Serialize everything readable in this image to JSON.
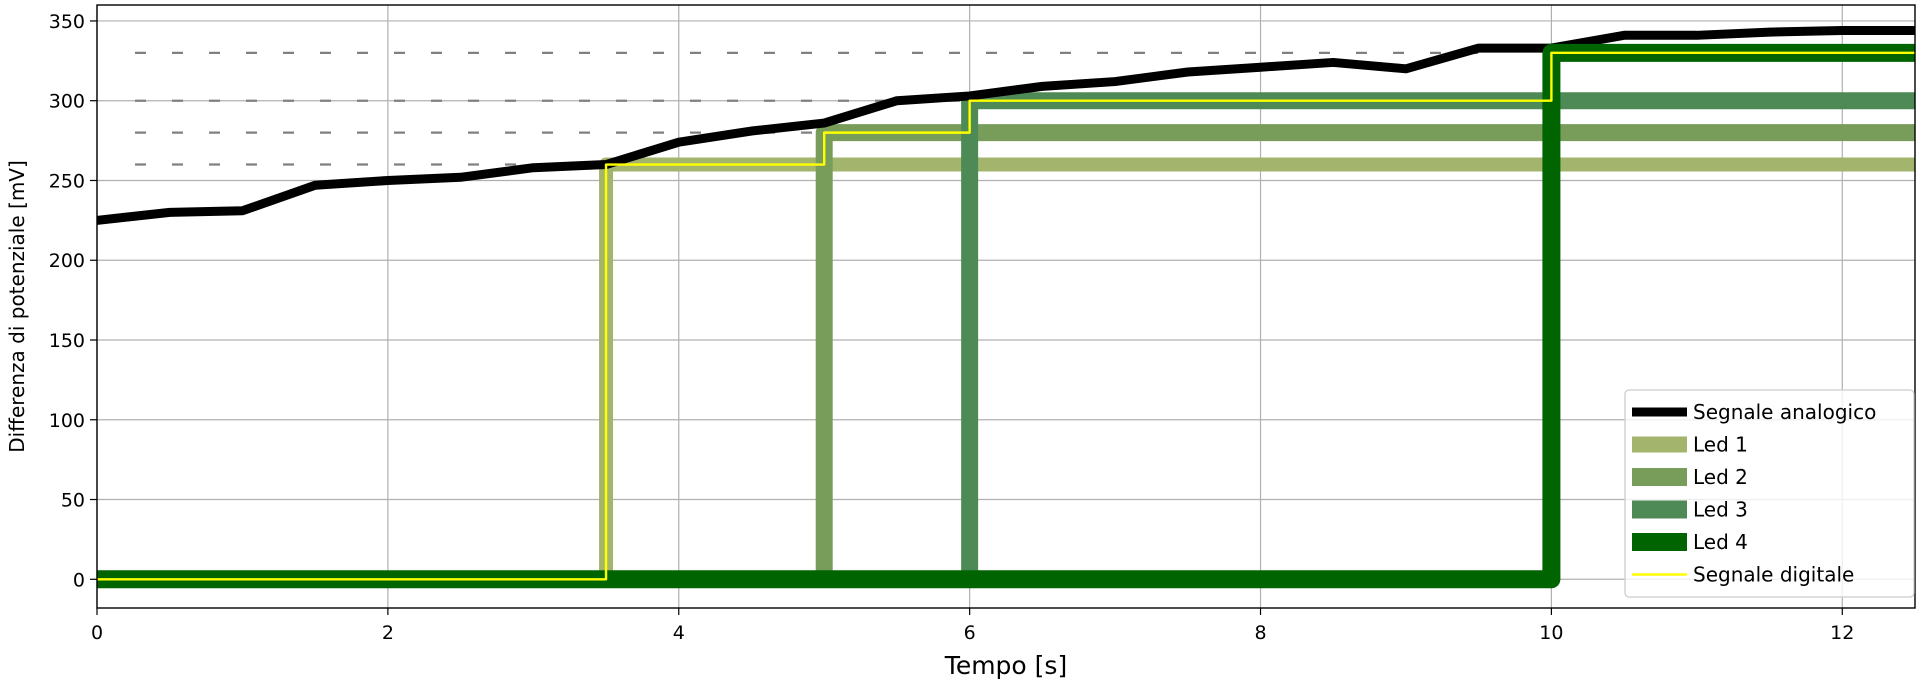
{
  "chart_data": {
    "type": "line",
    "title": "",
    "xlabel": "Tempo [s]",
    "ylabel": "Differenza di potenziale [mV]",
    "xlim": [
      0,
      12.5
    ],
    "ylim": [
      -18,
      360
    ],
    "xticks": [
      0,
      2,
      4,
      6,
      8,
      10,
      12
    ],
    "yticks": [
      0,
      50,
      100,
      150,
      200,
      250,
      300,
      350
    ],
    "grid": true,
    "legend_position": "lower-right",
    "thresholds": {
      "values": [
        260,
        280,
        300,
        330
      ],
      "x_range": [
        0,
        9.5
      ],
      "color": "#808080"
    },
    "series": [
      {
        "name": "Segnale analogico",
        "color": "#000000",
        "x": [
          0,
          0.5,
          1,
          1.5,
          2,
          2.5,
          3,
          3.5,
          4,
          4.5,
          5,
          5.5,
          6,
          6.5,
          7,
          7.5,
          8,
          8.5,
          9,
          9.5,
          10,
          10.5,
          11,
          11.5,
          12,
          12.5
        ],
        "y": [
          225,
          230,
          231,
          247,
          250,
          252,
          258,
          260,
          274,
          281,
          286,
          300,
          303,
          309,
          312,
          318,
          321,
          324,
          320,
          333,
          333,
          341,
          341,
          343,
          344,
          344
        ]
      },
      {
        "name": "Led 1",
        "color": "#a3b56c",
        "x": [
          0,
          3.5,
          3.5,
          12.5
        ],
        "y": [
          0,
          0,
          260,
          260
        ]
      },
      {
        "name": "Led 2",
        "color": "#789d5a",
        "x": [
          0,
          5,
          5,
          12.5
        ],
        "y": [
          0,
          0,
          280,
          280
        ]
      },
      {
        "name": "Led 3",
        "color": "#4e8a55",
        "x": [
          0,
          6,
          6,
          12.5
        ],
        "y": [
          0,
          0,
          300,
          300
        ]
      },
      {
        "name": "Led 4",
        "color": "#006400",
        "x": [
          0,
          10,
          10,
          12.5
        ],
        "y": [
          0,
          0,
          330,
          330
        ]
      },
      {
        "name": "Segnale digitale",
        "color": "#ffff00",
        "x": [
          0,
          3.5,
          3.5,
          5,
          5,
          6,
          6,
          10,
          10,
          12.5
        ],
        "y": [
          0,
          0,
          260,
          260,
          280,
          280,
          300,
          300,
          330,
          330
        ]
      }
    ]
  }
}
